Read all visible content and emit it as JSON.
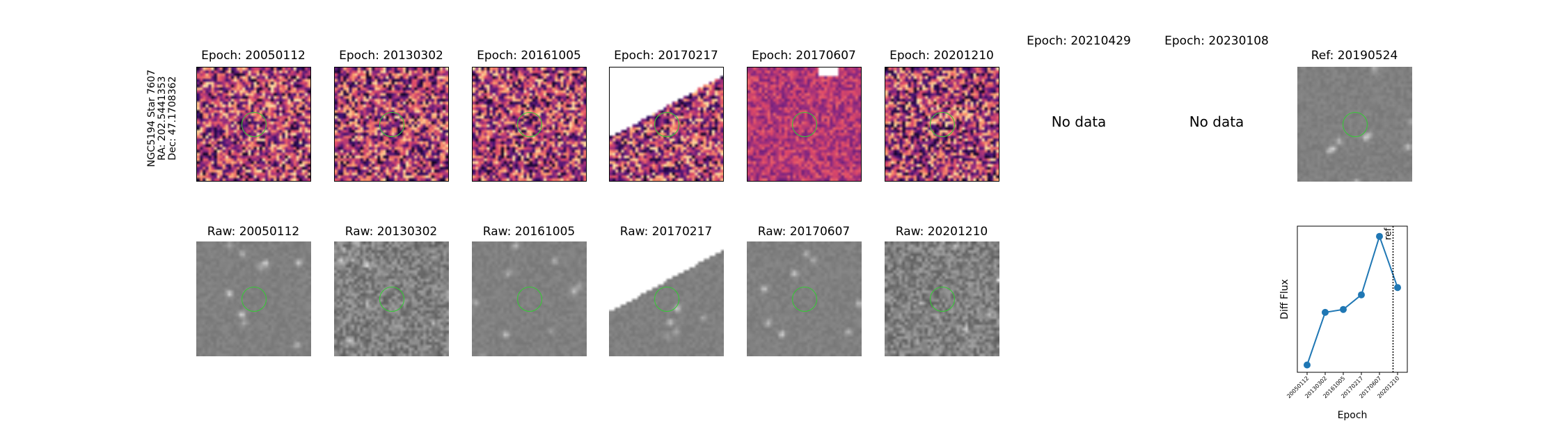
{
  "star_label": {
    "line1": "NGC5194 Star 7607",
    "line2": "RA: 202.5441353",
    "line3": "Dec: 47.1708362"
  },
  "diff_row": [
    {
      "title": "Epoch: 20050112",
      "has_data": true
    },
    {
      "title": "Epoch: 20130302",
      "has_data": true
    },
    {
      "title": "Epoch: 20161005",
      "has_data": true
    },
    {
      "title": "Epoch: 20170217",
      "has_data": true
    },
    {
      "title": "Epoch: 20170607",
      "has_data": true
    },
    {
      "title": "Epoch: 20201210",
      "has_data": true
    },
    {
      "title": "Epoch: 20210429",
      "has_data": false,
      "nodata": "No data"
    },
    {
      "title": "Epoch: 20230108",
      "has_data": false,
      "nodata": "No data"
    }
  ],
  "ref": {
    "title": "Ref: 20190524"
  },
  "raw_row": [
    {
      "title": "Raw: 20050112"
    },
    {
      "title": "Raw: 20130302"
    },
    {
      "title": "Raw: 20161005"
    },
    {
      "title": "Raw: 20170217"
    },
    {
      "title": "Raw: 20170607"
    },
    {
      "title": "Raw: 20201210"
    }
  ],
  "colors": {
    "circle": "#33cc33",
    "line": "#1f77b4"
  },
  "chart_data": {
    "type": "line",
    "xlabel": "Epoch",
    "ylabel": "Diff Flux",
    "categories": [
      "20050112",
      "20130302",
      "20161005",
      "20170217",
      "20170607",
      "20201210"
    ],
    "values": [
      0.05,
      0.41,
      0.43,
      0.53,
      0.93,
      0.58
    ],
    "ylim": [
      0,
      1
    ],
    "ref_marker": {
      "label": "ref",
      "position_between": [
        "20170607",
        "20201210"
      ],
      "fraction": 0.75
    },
    "grid": false
  }
}
